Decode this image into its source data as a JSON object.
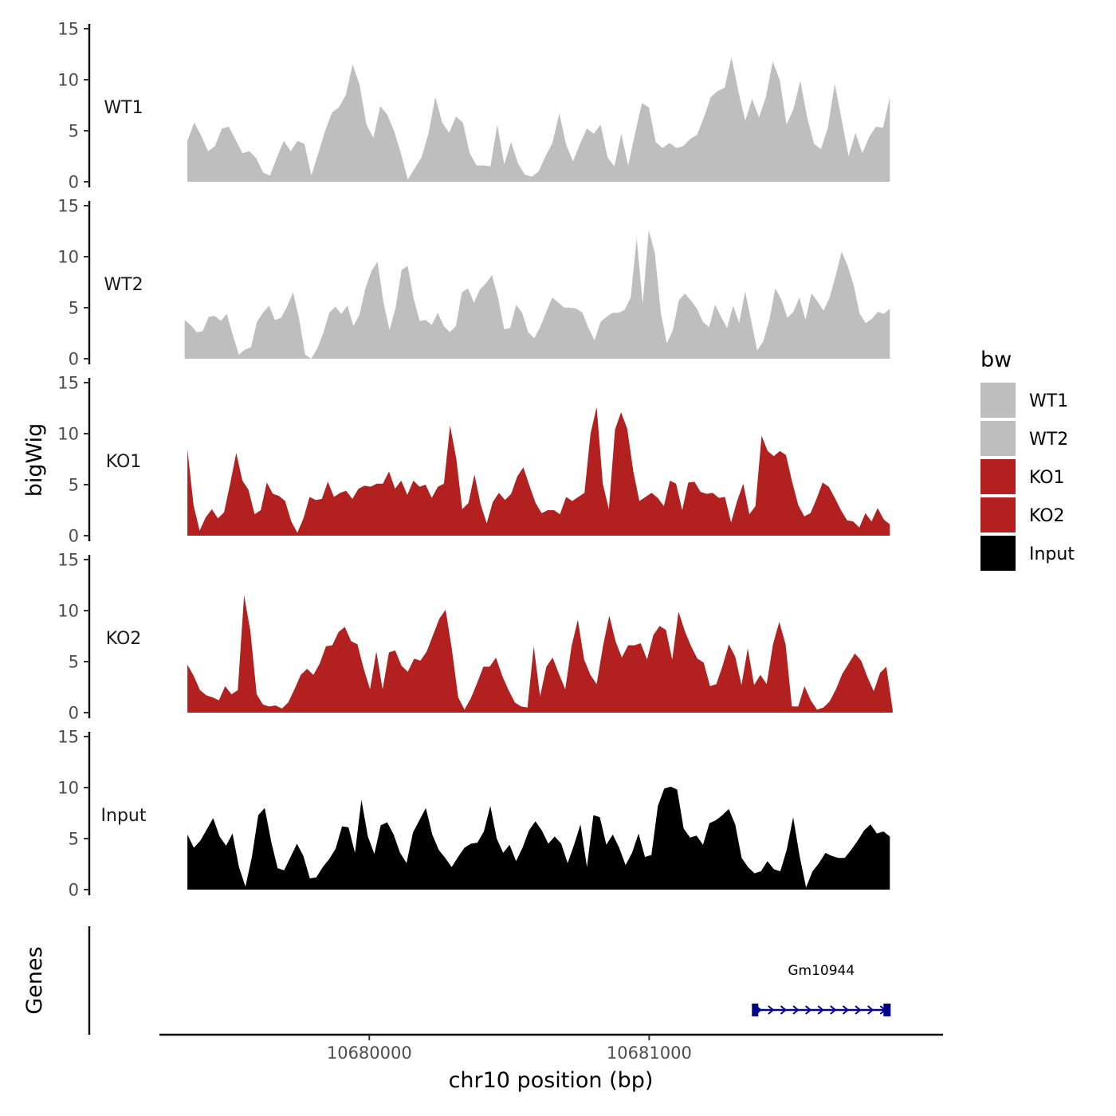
{
  "chart_data": {
    "type": "area",
    "y_title": "bigWig",
    "genes_title": "Genes",
    "x_title": "chr10 position (bp)",
    "x_range": [
      10679250,
      10682050
    ],
    "x_ticks": [
      10680000,
      10681000
    ],
    "x_tick_labels": [
      "10680000",
      "10681000"
    ],
    "y_range": [
      0,
      15
    ],
    "y_ticks": [
      0,
      5,
      10,
      15
    ],
    "y_tick_labels": [
      "0",
      "5",
      "10",
      "15"
    ],
    "legend": {
      "title": "bw",
      "items": [
        {
          "label": "WT1",
          "color": "#bebebe"
        },
        {
          "label": "WT2",
          "color": "#bebebe"
        },
        {
          "label": "KO1",
          "color": "#b22020"
        },
        {
          "label": "KO2",
          "color": "#b22020"
        },
        {
          "label": "Input",
          "color": "#000000"
        }
      ]
    },
    "tracks": [
      {
        "name": "WT1",
        "color": "#bebebe",
        "x_start": 10679350,
        "x_end": 10681860,
        "values": [
          4,
          5.8,
          4.5,
          3,
          3.5,
          5.2,
          5.4,
          4.1,
          2.8,
          3,
          2.3,
          0.9,
          0.6,
          2.4,
          4,
          3,
          4,
          3.7,
          0.6,
          2.8,
          5,
          6.8,
          7.3,
          8.5,
          11.5,
          9.5,
          5.6,
          4.3,
          7.4,
          6.6,
          5,
          2.8,
          0.2,
          1.3,
          2.4,
          4.7,
          8.3,
          5.8,
          4.8,
          6.4,
          5.8,
          2.8,
          1.6,
          1.6,
          1.5,
          5.6,
          1.7,
          3.9,
          1.8,
          0.7,
          0.5,
          1,
          2.5,
          3.8,
          6.7,
          3.6,
          2,
          3.7,
          5.2,
          4.7,
          5.6,
          2.4,
          1.5,
          4.7,
          1.6,
          4.7,
          7.7,
          7.3,
          3.9,
          3.3,
          3.8,
          3.3,
          3.5,
          4.2,
          4.6,
          6.3,
          8.3,
          8.9,
          9.2,
          12.2,
          8.9,
          6,
          8.1,
          6.3,
          8.3,
          11.8,
          10,
          5.6,
          7.1,
          9.9,
          6.3,
          3.7,
          3.2,
          5.3,
          9.6,
          6.1,
          2.5,
          4.8,
          2.8,
          4.4,
          5.4,
          5.3,
          8.3
        ]
      },
      {
        "name": "WT2",
        "color": "#bebebe",
        "x_start": 10679340,
        "x_end": 10681860,
        "values": [
          3.8,
          3.3,
          2.6,
          2.7,
          4.1,
          4.2,
          3.7,
          4.4,
          2.3,
          0.4,
          0.9,
          1.1,
          3.6,
          4.5,
          5.2,
          3.8,
          4,
          5.1,
          6.5,
          3.9,
          0.4,
          0,
          1,
          2.5,
          4.5,
          5.1,
          4.4,
          5.2,
          3.2,
          4.3,
          6.9,
          8.6,
          9.5,
          5.5,
          2.8,
          5,
          8.7,
          9.1,
          5.9,
          3.7,
          3.8,
          3.3,
          4.5,
          3.2,
          2.6,
          3.2,
          6.5,
          6.9,
          5.5,
          6.8,
          7.4,
          8.2,
          6,
          2.9,
          3,
          5.3,
          4.5,
          2.6,
          2,
          3.1,
          4.6,
          6,
          5.5,
          5,
          5,
          4.9,
          4.5,
          3,
          1.8,
          3.6,
          4.1,
          4.5,
          4.5,
          4.8,
          6,
          11.8,
          5.4,
          12.6,
          10.4,
          4.5,
          1.5,
          2.8,
          5.7,
          6.4,
          5.7,
          4.9,
          3.6,
          3.1,
          5.3,
          4.1,
          3,
          5.2,
          3.5,
          6.6,
          3.7,
          0.8,
          1.7,
          3.8,
          6.9,
          5.8,
          4,
          4.6,
          6,
          3.8,
          6.4,
          5.6,
          4.7,
          6,
          8.1,
          10.5,
          9.1,
          7.2,
          4.4,
          3.5,
          3.9,
          4.6,
          4.4,
          4.9
        ]
      },
      {
        "name": "KO1",
        "color": "#b22020",
        "x_start": 10679350,
        "x_end": 10681860,
        "values": [
          8.5,
          3,
          0.5,
          1.8,
          2.6,
          1.7,
          2.3,
          5.1,
          8.1,
          5.4,
          4.5,
          2.1,
          2.5,
          5.2,
          4.1,
          3.9,
          3.4,
          1.4,
          0.3,
          1.7,
          3.8,
          3.5,
          3.6,
          5.3,
          3.8,
          4.2,
          4.4,
          3.6,
          4.6,
          4.9,
          4.8,
          5.1,
          5.1,
          6.3,
          4.6,
          5.4,
          4,
          5.4,
          4.8,
          5,
          3.7,
          4.8,
          5.1,
          10.8,
          7.6,
          2.6,
          3.2,
          6,
          3.1,
          1.2,
          3.3,
          4.2,
          3.5,
          4.1,
          5.8,
          6.7,
          4.9,
          3.2,
          2.2,
          2.5,
          2.5,
          2.1,
          3.8,
          3.4,
          3.8,
          4.2,
          10,
          12.6,
          5.1,
          2.6,
          10.4,
          12.1,
          10.5,
          6.3,
          3.4,
          3.8,
          4.2,
          3.7,
          2.9,
          5.4,
          5.1,
          2.5,
          5.2,
          5.3,
          4.3,
          4.1,
          4.2,
          3.7,
          3.8,
          1.3,
          3.4,
          5.1,
          2.1,
          2.9,
          9.8,
          8.3,
          7.8,
          8.3,
          7.9,
          5.3,
          3,
          1.9,
          2.2,
          3.6,
          5.2,
          4.8,
          3.7,
          2.5,
          1.5,
          1.4,
          0.8,
          2.2,
          1.4,
          2.7,
          1.6,
          1.1
        ]
      },
      {
        "name": "KO2",
        "color": "#b22020",
        "x_start": 10679350,
        "x_end": 10681870,
        "values": [
          4.7,
          3.6,
          2.2,
          1.7,
          1.5,
          1.2,
          2.6,
          1.8,
          2.2,
          11.5,
          8,
          1.8,
          0.8,
          0.6,
          0.7,
          0.4,
          1,
          2.3,
          3.7,
          4.3,
          3.7,
          4.8,
          6.5,
          6.6,
          7.9,
          8.4,
          7,
          6.7,
          4.3,
          2.3,
          6,
          2.3,
          5.9,
          6.1,
          4.6,
          4,
          5.3,
          5.1,
          6,
          7.6,
          9.2,
          10.1,
          6.2,
          1.5,
          0.3,
          1.4,
          2.9,
          4.5,
          4.5,
          5.4,
          3.6,
          2.2,
          1,
          0.6,
          0.5,
          6.5,
          1.6,
          4.5,
          5.4,
          3.8,
          2.3,
          6.5,
          9.1,
          5.2,
          3.7,
          2.8,
          6.5,
          9.5,
          7,
          5.4,
          6.6,
          6.6,
          6.8,
          5.2,
          7.6,
          8.5,
          8.1,
          5.2,
          9.9,
          8,
          6.5,
          5.3,
          4.9,
          2.6,
          2.8,
          4.6,
          6.7,
          5.5,
          2.7,
          6.3,
          2.7,
          3.7,
          2.8,
          6.7,
          8.9,
          6.7,
          0.6,
          0.6,
          2.6,
          1.2,
          0.3,
          0.5,
          1.1,
          2.3,
          3.8,
          4.8,
          5.8,
          5.1,
          3.5,
          2.1,
          3.9,
          4.5,
          0.3
        ]
      },
      {
        "name": "Input",
        "color": "#000000",
        "x_start": 10679350,
        "x_end": 10681860,
        "values": [
          5.4,
          4.1,
          4.8,
          5.9,
          7,
          5.2,
          4.3,
          5.5,
          2.2,
          0.3,
          3.2,
          7.3,
          8,
          4.7,
          2.1,
          1.9,
          3.2,
          4.5,
          3.3,
          1.1,
          1.2,
          2.2,
          3,
          4,
          6.2,
          6.1,
          3.6,
          8.8,
          5.2,
          3.5,
          6.3,
          6.6,
          5.4,
          3.6,
          2.6,
          5.6,
          6.8,
          8,
          5.4,
          3.9,
          3.1,
          2.2,
          3.2,
          4.1,
          4.5,
          4.6,
          5.7,
          8.2,
          5,
          3.6,
          4.4,
          2.8,
          4.1,
          5.8,
          6.7,
          5.8,
          4.5,
          5.2,
          4.5,
          2.6,
          4.4,
          6.4,
          2.2,
          7.3,
          7.1,
          4.4,
          5.4,
          4.1,
          2.4,
          3.6,
          5.5,
          3.2,
          3.4,
          8.2,
          9.9,
          10.1,
          9.8,
          6,
          5.1,
          5.3,
          4.4,
          6.5,
          6.8,
          7.3,
          7.9,
          6.4,
          3.1,
          2.2,
          1.6,
          1.8,
          2.8,
          2,
          1.8,
          3.9,
          7.1,
          3.3,
          0.2,
          1.8,
          2.6,
          3.6,
          3.3,
          3.1,
          3.1,
          3.9,
          4.8,
          5.8,
          6.4,
          5.5,
          5.7,
          5.2
        ]
      }
    ],
    "genes": [
      {
        "name": "Gm10944",
        "start": 10681370,
        "end": 10681860,
        "strand": "+",
        "color": "#00008b"
      }
    ]
  }
}
